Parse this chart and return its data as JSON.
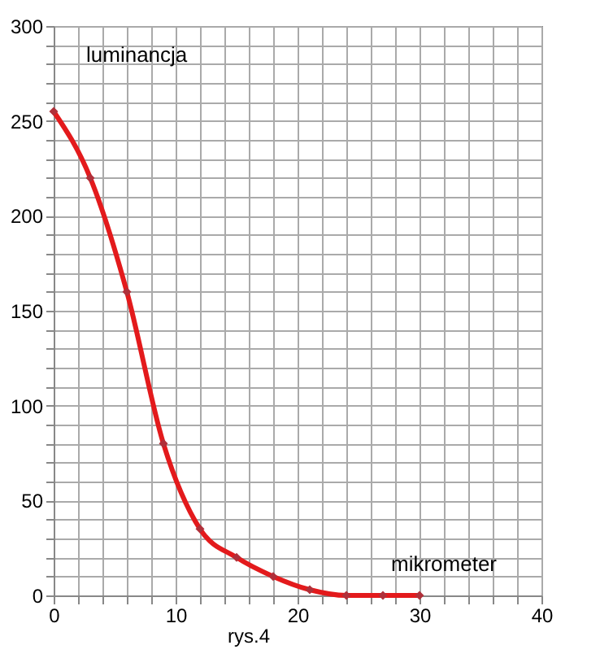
{
  "chart_data": {
    "type": "line",
    "x": [
      0,
      3,
      6,
      9,
      12,
      15,
      18,
      21,
      24,
      27,
      30
    ],
    "series": [
      {
        "color": "#e31a1c",
        "values": [
          255,
          220,
          160,
          80,
          35,
          20,
          10,
          3,
          0,
          0,
          0
        ]
      }
    ],
    "ylabel": "luminancja",
    "xlabel": "mikrometer",
    "annotations": [
      "rys.4"
    ],
    "xlim": [
      0,
      40
    ],
    "ylim": [
      0,
      300
    ],
    "xticks": [
      0,
      {
        "value": 2,
        "label": null
      },
      {
        "value": 4,
        "label": null
      },
      {
        "value": 6,
        "label": null
      },
      {
        "value": 8,
        "label": null
      },
      10,
      {
        "value": 12,
        "label": null
      },
      {
        "value": 14,
        "label": null
      },
      {
        "value": 16,
        "label": null
      },
      {
        "value": 18,
        "label": null
      },
      20,
      {
        "value": 22,
        "label": null
      },
      {
        "value": 24,
        "label": null
      },
      {
        "value": 26,
        "label": null
      },
      {
        "value": 28,
        "label": null
      },
      30,
      {
        "value": 32,
        "label": null
      },
      {
        "value": 34,
        "label": null
      },
      {
        "value": 36,
        "label": null
      },
      {
        "value": 38,
        "label": null
      },
      40
    ],
    "yticks": [
      0,
      {
        "value": 10,
        "label": null
      },
      {
        "value": 20,
        "label": null
      },
      {
        "value": 30,
        "label": null
      },
      {
        "value": 40,
        "label": null
      },
      50,
      {
        "value": 60,
        "label": null
      },
      {
        "value": 70,
        "label": null
      },
      {
        "value": 80,
        "label": null
      },
      {
        "value": 90,
        "label": null
      },
      100,
      {
        "value": 110,
        "label": null
      },
      {
        "value": 120,
        "label": null
      },
      {
        "value": 130,
        "label": null
      },
      {
        "value": 140,
        "label": null
      },
      150,
      {
        "value": 160,
        "label": null
      },
      {
        "value": 170,
        "label": null
      },
      {
        "value": 180,
        "label": null
      },
      {
        "value": 190,
        "label": null
      },
      200,
      {
        "value": 210,
        "label": null
      },
      {
        "value": 220,
        "label": null
      },
      {
        "value": 230,
        "label": null
      },
      {
        "value": 240,
        "label": null
      },
      250,
      {
        "value": 260,
        "label": null
      },
      {
        "value": 270,
        "label": null
      },
      {
        "value": 280,
        "label": null
      },
      {
        "value": 290,
        "label": null
      },
      300
    ],
    "grid": true,
    "marker": "diamond",
    "line_style": "solid"
  }
}
